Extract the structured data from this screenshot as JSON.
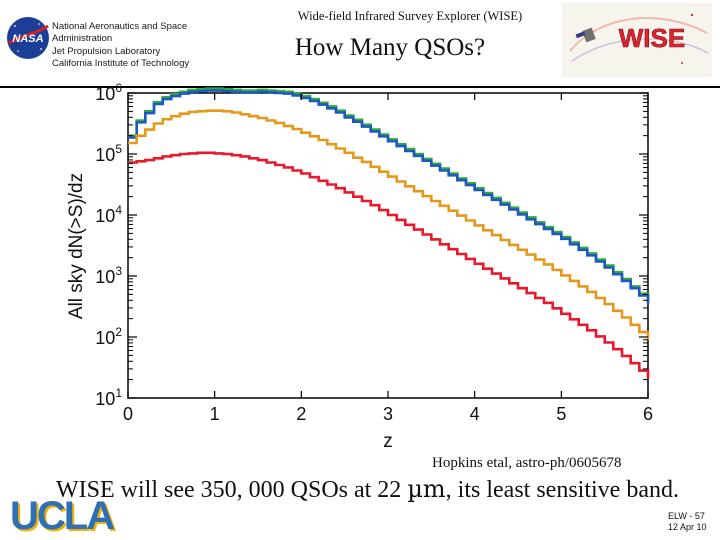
{
  "header": {
    "org_lines": [
      "National Aeronautics and Space",
      "Administration",
      "Jet Propulsion Laboratory",
      "California Institute of Technology"
    ],
    "nasa_logo_text": "NASA",
    "subtitle": "Wide-field Infrared Survey Explorer (WISE)",
    "title": "How Many QSOs?",
    "wise_logo_text": "WISE"
  },
  "chart_data": {
    "type": "line",
    "title": "",
    "xlabel": "z",
    "ylabel": "All sky dN(>S)/dz",
    "xlim": [
      0,
      6
    ],
    "ylim_log10": [
      1,
      6
    ],
    "x_ticks": [
      "0",
      "1",
      "2",
      "3",
      "4",
      "5",
      "6"
    ],
    "y_tick_base": "10",
    "y_tick_exponents": [
      "1",
      "2",
      "3",
      "4",
      "5",
      "6"
    ],
    "x": [
      0.0,
      0.1,
      0.2,
      0.3,
      0.4,
      0.5,
      0.6,
      0.7,
      0.8,
      0.9,
      1.0,
      1.1,
      1.2,
      1.3,
      1.4,
      1.5,
      1.6,
      1.7,
      1.8,
      1.9,
      2.0,
      2.1,
      2.2,
      2.3,
      2.4,
      2.5,
      2.6,
      2.7,
      2.8,
      2.9,
      3.0,
      3.1,
      3.2,
      3.3,
      3.4,
      3.5,
      3.6,
      3.7,
      3.8,
      3.9,
      4.0,
      4.1,
      4.2,
      4.3,
      4.4,
      4.5,
      4.6,
      4.7,
      4.8,
      4.9,
      5.0,
      5.1,
      5.2,
      5.3,
      5.4,
      5.5,
      5.6,
      5.7,
      5.8,
      5.9,
      6.0
    ],
    "series": [
      {
        "name": "green",
        "color": "#2db034",
        "values": [
          5.3,
          5.55,
          5.7,
          5.85,
          5.93,
          5.98,
          6.02,
          6.05,
          6.06,
          6.07,
          6.07,
          6.06,
          6.05,
          6.04,
          6.04,
          6.05,
          6.04,
          6.03,
          6.02,
          5.99,
          5.95,
          5.9,
          5.84,
          5.78,
          5.71,
          5.63,
          5.56,
          5.48,
          5.4,
          5.32,
          5.24,
          5.16,
          5.08,
          5.0,
          4.92,
          4.84,
          4.76,
          4.68,
          4.6,
          4.52,
          4.44,
          4.36,
          4.28,
          4.2,
          4.12,
          4.04,
          3.96,
          3.88,
          3.8,
          3.72,
          3.64,
          3.55,
          3.46,
          3.37,
          3.27,
          3.17,
          3.06,
          2.95,
          2.83,
          2.71,
          2.58
        ]
      },
      {
        "name": "blue",
        "color": "#1f58c4",
        "values": [
          5.27,
          5.52,
          5.67,
          5.82,
          5.9,
          5.95,
          5.99,
          6.02,
          6.03,
          6.04,
          6.04,
          6.03,
          6.02,
          6.01,
          6.01,
          6.02,
          6.01,
          6.0,
          5.99,
          5.96,
          5.92,
          5.87,
          5.81,
          5.75,
          5.68,
          5.6,
          5.53,
          5.45,
          5.37,
          5.29,
          5.21,
          5.13,
          5.05,
          4.97,
          4.89,
          4.81,
          4.73,
          4.65,
          4.57,
          4.49,
          4.41,
          4.33,
          4.25,
          4.17,
          4.09,
          4.01,
          3.93,
          3.85,
          3.77,
          3.69,
          3.61,
          3.52,
          3.43,
          3.34,
          3.24,
          3.14,
          3.03,
          2.92,
          2.8,
          2.68,
          2.55
        ]
      },
      {
        "name": "orange",
        "color": "#e5981c",
        "values": [
          5.18,
          5.3,
          5.4,
          5.5,
          5.57,
          5.62,
          5.66,
          5.69,
          5.7,
          5.71,
          5.71,
          5.7,
          5.68,
          5.65,
          5.62,
          5.59,
          5.55,
          5.51,
          5.46,
          5.41,
          5.35,
          5.29,
          5.23,
          5.16,
          5.09,
          5.02,
          4.94,
          4.87,
          4.79,
          4.71,
          4.63,
          4.55,
          4.47,
          4.39,
          4.31,
          4.23,
          4.15,
          4.07,
          3.99,
          3.91,
          3.83,
          3.75,
          3.67,
          3.59,
          3.51,
          3.43,
          3.35,
          3.27,
          3.19,
          3.1,
          3.01,
          2.92,
          2.83,
          2.74,
          2.64,
          2.54,
          2.43,
          2.32,
          2.2,
          2.08,
          1.95
        ]
      },
      {
        "name": "red",
        "color": "#e8192c",
        "values": [
          4.86,
          4.88,
          4.9,
          4.93,
          4.96,
          4.98,
          5.0,
          5.01,
          5.02,
          5.02,
          5.01,
          5.0,
          4.98,
          4.96,
          4.93,
          4.9,
          4.86,
          4.82,
          4.78,
          4.73,
          4.68,
          4.62,
          4.56,
          4.5,
          4.44,
          4.37,
          4.3,
          4.23,
          4.16,
          4.08,
          4.0,
          3.92,
          3.84,
          3.76,
          3.68,
          3.6,
          3.52,
          3.44,
          3.36,
          3.28,
          3.2,
          3.12,
          3.04,
          2.96,
          2.88,
          2.8,
          2.72,
          2.64,
          2.56,
          2.47,
          2.38,
          2.29,
          2.2,
          2.11,
          2.01,
          1.91,
          1.8,
          1.69,
          1.57,
          1.45,
          1.32
        ]
      }
    ]
  },
  "citation": "Hopkins etal, astro-ph/0605678",
  "caption": {
    "before": "WISE will see 350, 000 QSOs at 22 ",
    "unit": "µm",
    "after": ", its least sensitive band."
  },
  "footer": {
    "logo_text": "UCLA",
    "code": "ELW - 57",
    "date": "12 Apr 10"
  }
}
